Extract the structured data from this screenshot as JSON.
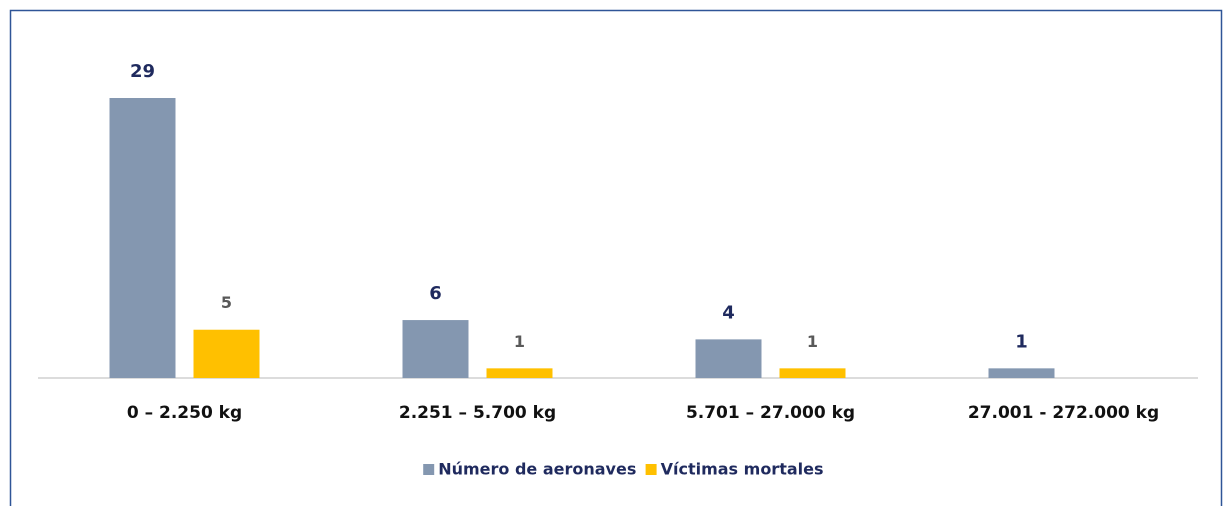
{
  "chart_data": {
    "type": "bar",
    "categories": [
      "0 – 2.250 kg",
      "2.251 – 5.700 kg",
      "5.701 – 27.000 kg",
      "27.001 - 272.000 kg"
    ],
    "series": [
      {
        "name": "Número de aeronaves",
        "color": "#8497b0",
        "values": [
          29,
          6,
          4,
          1
        ]
      },
      {
        "name": "Víctimas mortales",
        "color": "#ffc000",
        "values": [
          5,
          1,
          1,
          null
        ]
      }
    ],
    "legend": "bottom"
  }
}
